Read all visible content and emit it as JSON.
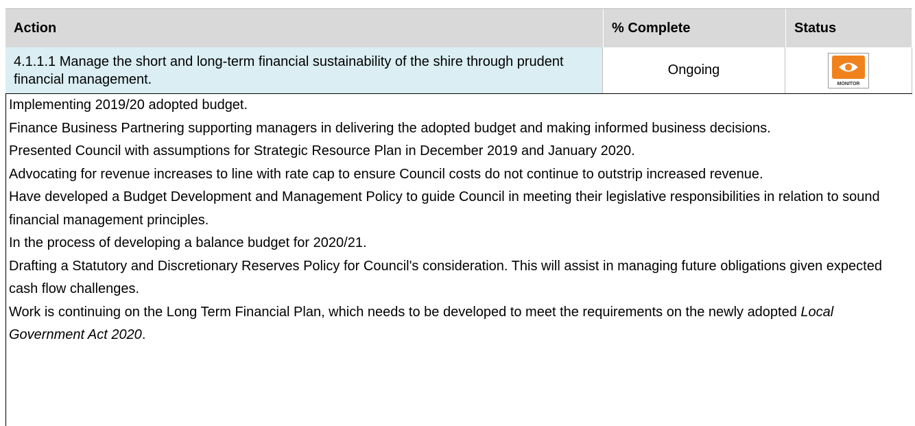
{
  "table": {
    "header": [
      "Action",
      "% Complete",
      "Status"
    ],
    "row": {
      "action": "4.1.1.1 Manage the short and long-term financial sustainability of the shire through prudent financial management.",
      "complete": "Ongoing",
      "status_icon": "MONITOR"
    },
    "notes": [
      "Implementing 2019/20 adopted budget.",
      "Finance Business Partnering supporting managers in delivering the adopted budget and making informed business decisions.",
      "Presented Council with assumptions for Strategic Resource Plan in December 2019 and January 2020.",
      "Advocating for revenue increases to line with rate cap to ensure Council costs do not continue to outstrip increased revenue.",
      "Have developed a Budget Development and Management Policy to guide Council in meeting their legislative responsibilities in relation to sound financial management principles.",
      "In the process of developing a balance budget for 2020/21.",
      "Drafting a Statutory and Discretionary Reserves Policy for Council's consideration. This will assist in managing future obligations given expected cash flow challenges."
    ],
    "last_note": {
      "text": "Work is continuing on the Long Term Financial Plan, which needs to be developed to meet the requirements on the newly adopted ",
      "italic": "Local Government Act 2020",
      "end": "."
    }
  }
}
